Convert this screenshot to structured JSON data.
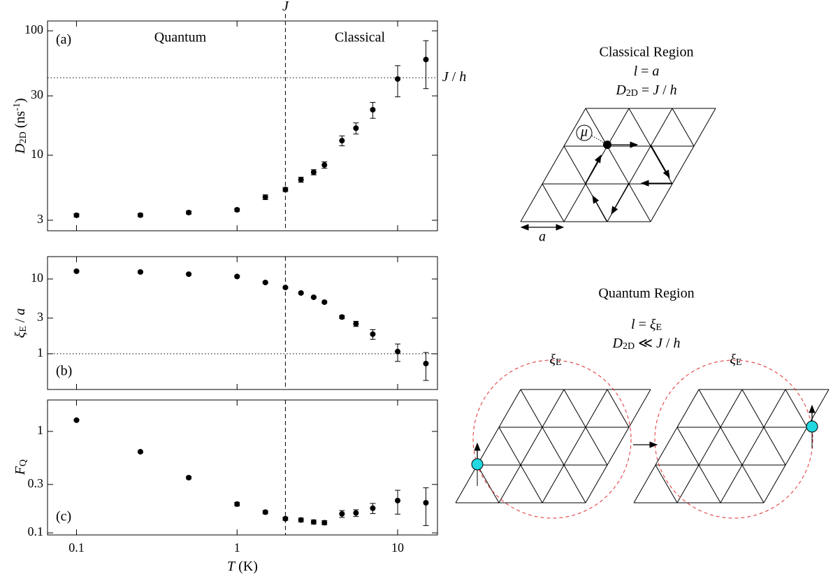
{
  "chart_data": [
    {
      "type": "scatter",
      "panel_label": "(a)",
      "annotations": [
        "Quantum",
        "Classical"
      ],
      "ylabel": [
        {
          "text": "D",
          "style": "i"
        },
        {
          "text": "2D",
          "style": "sub"
        },
        {
          "text": " (ns"
        },
        {
          "text": "-1",
          "style": "sup"
        },
        {
          "text": ")"
        }
      ],
      "x": [
        0.1,
        0.25,
        0.5,
        1,
        1.5,
        2,
        2.5,
        3,
        3.5,
        4.5,
        5.5,
        7,
        10,
        15
      ],
      "series": [
        {
          "color": "#000000",
          "values": [
            3.29,
            3.3,
            3.46,
            3.64,
            4.6,
            5.3,
            6.36,
            7.3,
            8.35,
            13.1,
            16.5,
            23.2,
            41,
            58.8
          ],
          "errors": [
            0.1,
            0.1,
            0.1,
            0.1,
            0.2,
            0.2,
            0.3,
            0.35,
            0.5,
            1.2,
            1.7,
            3.4,
            11.5,
            24.5
          ]
        }
      ],
      "log_x": true,
      "log_y": true,
      "xlim": [
        0.066,
        17.7
      ],
      "xticks": [
        0.1,
        1,
        10
      ],
      "show_tick_labels": false,
      "ylim": [
        2.47,
        120
      ],
      "yticks": [
        3,
        10,
        30,
        100
      ],
      "vline": {
        "value": 2,
        "label": [
          {
            "text": "J",
            "style": "i"
          }
        ]
      },
      "hline": {
        "value": 42,
        "label": [
          {
            "text": "J",
            "style": "i"
          },
          {
            "text": " / "
          },
          {
            "text": "h",
            "style": "i"
          }
        ]
      },
      "grid": false
    },
    {
      "type": "scatter",
      "panel_label": "(b)",
      "annotations": [],
      "ylabel": [
        {
          "text": "ξ",
          "style": "i"
        },
        {
          "text": "E",
          "style": "sub"
        },
        {
          "text": " / "
        },
        {
          "text": "a",
          "style": "i"
        }
      ],
      "x": [
        0.1,
        0.25,
        0.5,
        1,
        1.5,
        2,
        2.5,
        3,
        3.5,
        4.5,
        5.5,
        7,
        10,
        15
      ],
      "series": [
        {
          "color": "#000000",
          "values": [
            12.7,
            12.4,
            11.6,
            10.8,
            8.98,
            7.7,
            6.5,
            5.7,
            4.9,
            3.1,
            2.52,
            1.83,
            1.07,
            0.74
          ],
          "errors": [
            0.3,
            0.3,
            0.3,
            0.3,
            0.2,
            0.2,
            0.15,
            0.15,
            0.15,
            0.15,
            0.2,
            0.27,
            0.28,
            0.3
          ]
        }
      ],
      "log_x": true,
      "log_y": true,
      "xlim": [
        0.066,
        17.7
      ],
      "xticks": [
        0.1,
        1,
        10
      ],
      "show_tick_labels": false,
      "ylim": [
        0.333,
        19.9
      ],
      "yticks": [
        1,
        3,
        10
      ],
      "vline": {
        "value": 2
      },
      "hline": {
        "value": 1
      },
      "grid": false
    },
    {
      "type": "scatter",
      "panel_label": "(c)",
      "annotations": [],
      "ylabel": [
        {
          "text": "F",
          "style": "i"
        },
        {
          "text": "Q",
          "style": "sub"
        }
      ],
      "xlabel": [
        {
          "text": "T",
          "style": "i"
        },
        {
          "text": " (K)"
        }
      ],
      "x": [
        0.1,
        0.25,
        0.5,
        1,
        1.5,
        2,
        2.5,
        3,
        3.5,
        4.5,
        5.5,
        7,
        10,
        15
      ],
      "series": [
        {
          "color": "#000000",
          "values": [
            1.29,
            0.63,
            0.35,
            0.192,
            0.16,
            0.138,
            0.134,
            0.128,
            0.126,
            0.154,
            0.157,
            0.175,
            0.208,
            0.198
          ],
          "errors": [
            0.02,
            0.01,
            0.01,
            0.008,
            0.006,
            0.005,
            0.006,
            0.006,
            0.006,
            0.012,
            0.012,
            0.02,
            0.055,
            0.08
          ]
        }
      ],
      "log_x": true,
      "log_y": true,
      "xlim": [
        0.066,
        17.7
      ],
      "xticks": [
        0.1,
        1,
        10
      ],
      "show_tick_labels": true,
      "ylim": [
        0.0954,
        2.04
      ],
      "yticks": [
        0.1,
        0.3,
        1
      ],
      "vline": {
        "value": 2
      },
      "grid": false
    }
  ],
  "diagram": {
    "classical": {
      "title": "Classical Region",
      "length": [
        {
          "text": "l",
          "style": "i"
        },
        {
          "text": " = "
        },
        {
          "text": "a",
          "style": "i"
        }
      ],
      "diffusion": [
        {
          "text": "D",
          "style": "i"
        },
        {
          "text": "2D",
          "style": "sub"
        },
        {
          "text": " = "
        },
        {
          "text": "J",
          "style": "i"
        },
        {
          "text": " / "
        },
        {
          "text": "h",
          "style": "i"
        }
      ],
      "mu": "μ",
      "spacing": "a"
    },
    "quantum": {
      "title": "Quantum Region",
      "length": [
        {
          "text": "l",
          "style": "i"
        },
        {
          "text": " = "
        },
        {
          "text": "ξ",
          "style": "i"
        },
        {
          "text": "E",
          "style": "sub"
        }
      ],
      "diffusion": [
        {
          "text": "D",
          "style": "i"
        },
        {
          "text": "2D",
          "style": "sub"
        },
        {
          "text": " ≪ "
        },
        {
          "text": "J",
          "style": "i"
        },
        {
          "text": " / "
        },
        {
          "text": "h",
          "style": "i"
        }
      ],
      "circle_labels": [
        [
          {
            "text": "ξ",
            "style": "i"
          },
          {
            "text": "E",
            "style": "sub"
          }
        ],
        [
          {
            "text": "ξ",
            "style": "i"
          },
          {
            "text": "E",
            "style": "sub"
          }
        ]
      ]
    }
  }
}
